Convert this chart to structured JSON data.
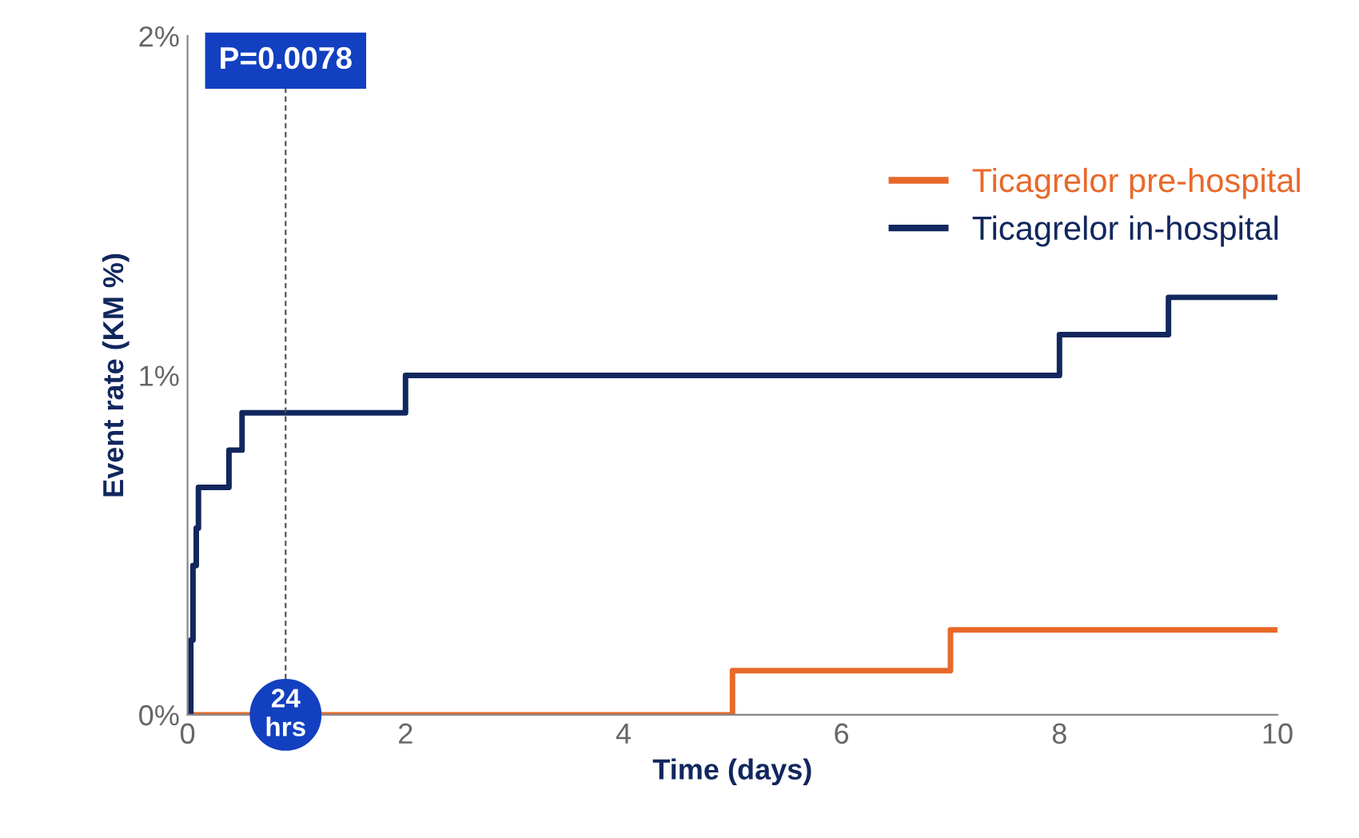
{
  "chart_data": {
    "type": "step",
    "xlabel": "Time (days)",
    "ylabel": "Event rate (KM %)",
    "xlim": [
      0,
      10
    ],
    "xticks": [
      0,
      2,
      4,
      6,
      8,
      10
    ],
    "ylim": [
      0,
      2
    ],
    "yticks": [
      {
        "value": 0,
        "label": "0%"
      },
      {
        "value": 1,
        "label": "1%"
      },
      {
        "value": 2,
        "label": "2%"
      }
    ],
    "series": [
      {
        "name": "Ticagrelor pre-hospital",
        "color": "#e8692a",
        "x": [
          0,
          5,
          7,
          10
        ],
        "values": [
          0,
          0.13,
          0.25,
          0.25
        ]
      },
      {
        "name": "Ticagrelor in-hospital",
        "color": "#12275e",
        "x": [
          0,
          0.03,
          0.05,
          0.08,
          0.1,
          0.38,
          0.5,
          2,
          8,
          9,
          10
        ],
        "values": [
          0,
          0.22,
          0.44,
          0.55,
          0.67,
          0.78,
          0.89,
          1.0,
          1.12,
          1.23,
          1.23
        ]
      }
    ],
    "ref_lines": [
      {
        "axis": "x",
        "value": 0.9,
        "label": "24 hrs",
        "color": "#555555",
        "line_style": "dashed"
      }
    ],
    "annotations": [
      "P=0.0078"
    ],
    "legend": "top right",
    "grid": false
  }
}
